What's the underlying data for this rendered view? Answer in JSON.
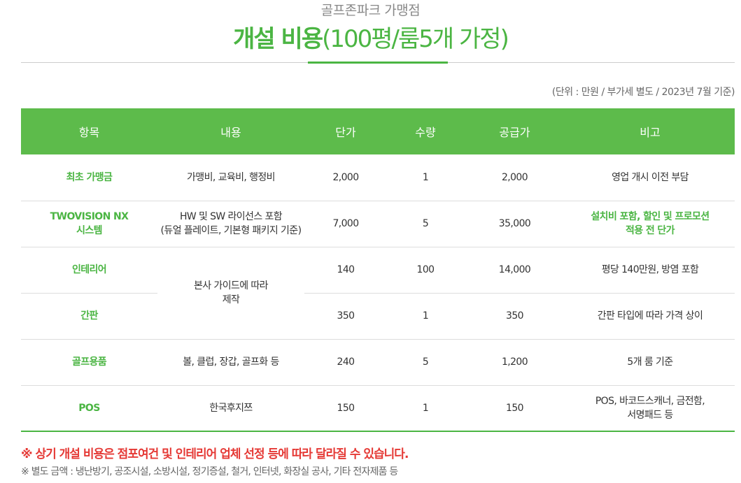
{
  "header": {
    "subtitle": "골프존파크 가맹점",
    "title_bold": "개설 비용",
    "title_light": "(100평/룸5개 가정)"
  },
  "unit_note": "(단위 : 만원 / 부가세 별도 / 2023년 7월 기준)",
  "table": {
    "headers": [
      "항목",
      "내용",
      "단가",
      "수량",
      "공급가",
      "비고"
    ],
    "rows": [
      {
        "item": "최초 가맹금",
        "content": "가맹비, 교육비, 행정비",
        "unit_price": "2,000",
        "qty": "1",
        "supply": "2,000",
        "note": "영업 개시 이전 부담"
      },
      {
        "item_line1": "TWOVISION NX",
        "item_line2": "시스템",
        "content_line1": "HW 및 SW 라이선스 포함",
        "content_line2": "(듀얼 플레이트, 기본형 패키지 기준)",
        "unit_price": "7,000",
        "qty": "5",
        "supply": "35,000",
        "note_line1": "설치비 포함, 할인 및 프로모션",
        "note_line2": "적용 전 단가"
      },
      {
        "item": "인테리어",
        "content_line1": "본사 가이드에 따라",
        "content_line2": "제작",
        "unit_price": "140",
        "qty": "100",
        "supply": "14,000",
        "note": "평당 140만원, 방염 포함"
      },
      {
        "item": "간판",
        "unit_price": "350",
        "qty": "1",
        "supply": "350",
        "note": "간판 타입에 따라 가격 상이"
      },
      {
        "item": "골프용품",
        "content": "볼, 클럽, 장갑, 골프화 등",
        "unit_price": "240",
        "qty": "5",
        "supply": "1,200",
        "note": "5개 룸 기준"
      },
      {
        "item": "POS",
        "content": "한국후지쯔",
        "unit_price": "150",
        "qty": "1",
        "supply": "150",
        "note_line1": "POS, 바코드스캐너, 금전함,",
        "note_line2": "서명패드 등"
      }
    ]
  },
  "footnotes": {
    "line1": "※ 상기 개설 비용은 점포여건 및 인테리어 업체 선정 등에 따라 달라질 수 있습니다.",
    "line2": "※ 별도 금액 : 냉난방기, 공조시설, 소방시설, 정기증설, 철거, 인터넷, 화장실 공사, 기타 전자제품 등"
  },
  "colors": {
    "accent_green": "#4bb543",
    "header_green": "#5dbb4b",
    "warning_red": "#e53935"
  }
}
